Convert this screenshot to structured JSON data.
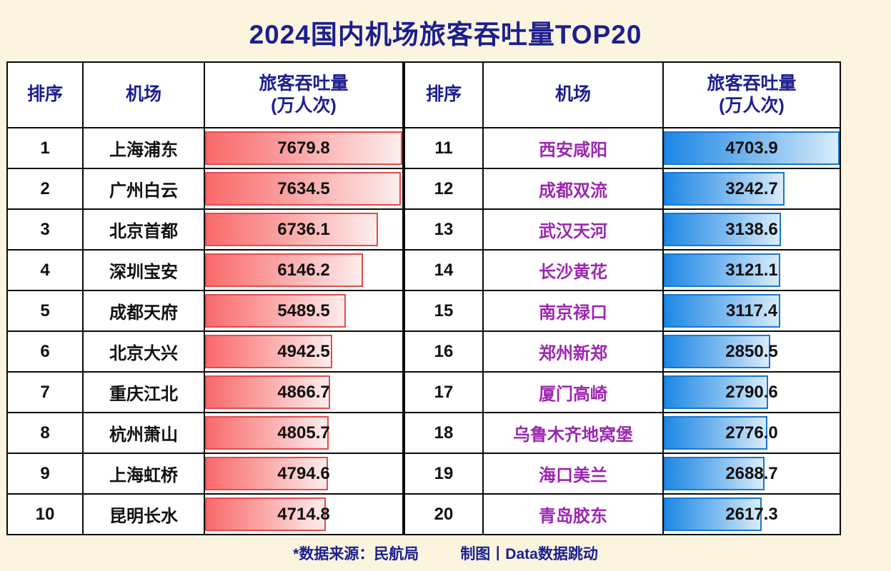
{
  "title": "2024国内机场旅客吞吐量TOP20",
  "columns": {
    "rank": "排序",
    "airport": "机场",
    "value_line1": "旅客吞吐量",
    "value_line2": "(万人次)"
  },
  "footer": {
    "source": "*数据来源：民航局",
    "credit": "制图丨Data数据跳动"
  },
  "colors": {
    "background": "#FBF5DF",
    "title_text": "#1B1F8F",
    "header_text": "#1B1F8F",
    "left_bar": "#F96A6A",
    "left_bar_border": "#E64A4A",
    "right_bar": "#1E88E5",
    "right_bar_border": "#1976D2",
    "right_airport_text": "#9C27B0",
    "grid_border": "#0a0a0a"
  },
  "left_rows": [
    {
      "rank": "1",
      "airport": "上海浦东",
      "value": "7679.8",
      "pct": 100
    },
    {
      "rank": "2",
      "airport": "广州白云",
      "value": "7634.5",
      "pct": 99.4
    },
    {
      "rank": "3",
      "airport": "北京首都",
      "value": "6736.1",
      "pct": 87.7
    },
    {
      "rank": "4",
      "airport": "深圳宝安",
      "value": "6146.2",
      "pct": 80.0
    },
    {
      "rank": "5",
      "airport": "成都天府",
      "value": "5489.5",
      "pct": 71.5
    },
    {
      "rank": "6",
      "airport": "北京大兴",
      "value": "4942.5",
      "pct": 64.4
    },
    {
      "rank": "7",
      "airport": "重庆江北",
      "value": "4866.7",
      "pct": 63.4
    },
    {
      "rank": "8",
      "airport": "杭州萧山",
      "value": "4805.7",
      "pct": 62.6
    },
    {
      "rank": "9",
      "airport": "上海虹桥",
      "value": "4794.6",
      "pct": 62.4
    },
    {
      "rank": "10",
      "airport": "昆明长水",
      "value": "4714.8",
      "pct": 61.4
    }
  ],
  "right_rows": [
    {
      "rank": "11",
      "airport": "西安咸阳",
      "value": "4703.9",
      "pct": 100
    },
    {
      "rank": "12",
      "airport": "成都双流",
      "value": "3242.7",
      "pct": 68.9
    },
    {
      "rank": "13",
      "airport": "武汉天河",
      "value": "3138.6",
      "pct": 66.7
    },
    {
      "rank": "14",
      "airport": "长沙黄花",
      "value": "3121.1",
      "pct": 66.4
    },
    {
      "rank": "15",
      "airport": "南京禄口",
      "value": "3117.4",
      "pct": 66.3
    },
    {
      "rank": "16",
      "airport": "郑州新郑",
      "value": "2850.5",
      "pct": 60.6
    },
    {
      "rank": "17",
      "airport": "厦门高崎",
      "value": "2790.6",
      "pct": 59.3
    },
    {
      "rank": "18",
      "airport": "乌鲁木齐地窝堡",
      "value": "2776.0",
      "pct": 59.0
    },
    {
      "rank": "19",
      "airport": "海口美兰",
      "value": "2688.7",
      "pct": 57.2
    },
    {
      "rank": "20",
      "airport": "青岛胶东",
      "value": "2617.3",
      "pct": 55.6
    }
  ],
  "chart_data": {
    "type": "bar",
    "title": "2024国内机场旅客吞吐量TOP20",
    "unit": "万人次",
    "xlabel": "机场",
    "ylabel": "旅客吞吐量(万人次)",
    "source": "*数据来源：民航局",
    "credit": "制图丨Data数据跳动",
    "categories": [
      "上海浦东",
      "广州白云",
      "北京首都",
      "深圳宝安",
      "成都天府",
      "北京大兴",
      "重庆江北",
      "杭州萧山",
      "上海虹桥",
      "昆明长水",
      "西安咸阳",
      "成都双流",
      "武汉天河",
      "长沙黄花",
      "南京禄口",
      "郑州新郑",
      "厦门高崎",
      "乌鲁木齐地窝堡",
      "海口美兰",
      "青岛胶东"
    ],
    "values": [
      7679.8,
      7634.5,
      6736.1,
      6146.2,
      5489.5,
      4942.5,
      4866.7,
      4805.7,
      4794.6,
      4714.8,
      4703.9,
      3242.7,
      3138.6,
      3121.1,
      3117.4,
      2850.5,
      2790.6,
      2776.0,
      2688.7,
      2617.3
    ],
    "layout": "two side-by-side tables: ranks 1-10 (red gradient bars), ranks 11-20 (blue gradient bars); each table's bars scaled to its own max"
  }
}
